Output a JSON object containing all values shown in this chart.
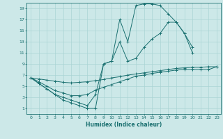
{
  "xlabel": "Humidex (Indice chaleur)",
  "bg_color": "#cce8e8",
  "grid_color": "#aad4d4",
  "line_color": "#1a7070",
  "xlim": [
    -0.5,
    23.5
  ],
  "ylim": [
    0,
    20
  ],
  "xticks": [
    0,
    1,
    2,
    3,
    4,
    5,
    6,
    7,
    8,
    9,
    10,
    11,
    12,
    13,
    14,
    15,
    16,
    17,
    18,
    19,
    20,
    21,
    22,
    23
  ],
  "yticks": [
    1,
    3,
    5,
    7,
    9,
    11,
    13,
    15,
    17,
    19
  ],
  "line1_x": [
    0,
    1,
    2,
    3,
    4,
    5,
    6,
    7,
    8,
    9,
    10,
    11,
    12,
    13,
    14,
    15,
    16,
    17,
    18,
    19,
    20
  ],
  "line1_y": [
    6.5,
    5.5,
    4.5,
    3.5,
    2.5,
    2.0,
    1.5,
    1.0,
    1.0,
    9.0,
    9.5,
    17.0,
    13.0,
    19.5,
    19.8,
    19.8,
    19.5,
    18.0,
    16.5,
    14.5,
    12.0
  ],
  "line2_x": [
    0,
    1,
    2,
    3,
    4,
    5,
    6,
    7,
    8,
    9,
    10,
    11,
    12,
    13,
    14,
    15,
    16,
    17,
    18,
    19,
    20
  ],
  "line2_y": [
    6.5,
    5.5,
    4.5,
    3.5,
    3.0,
    2.5,
    2.0,
    1.5,
    3.5,
    9.0,
    9.5,
    13.0,
    9.5,
    10.0,
    12.0,
    13.5,
    14.5,
    16.5,
    16.5,
    14.5,
    11.0
  ],
  "line3_x": [
    0,
    1,
    2,
    3,
    4,
    5,
    6,
    7,
    8,
    9,
    10,
    11,
    12,
    13,
    14,
    15,
    16,
    17,
    18,
    19,
    20,
    21,
    22,
    23
  ],
  "line3_y": [
    6.5,
    6.3,
    6.1,
    5.9,
    5.7,
    5.6,
    5.7,
    5.8,
    6.0,
    6.2,
    6.5,
    6.7,
    7.0,
    7.2,
    7.4,
    7.6,
    7.8,
    8.0,
    8.2,
    8.3,
    8.4,
    8.4,
    8.5,
    8.5
  ],
  "line4_x": [
    0,
    1,
    2,
    3,
    4,
    5,
    6,
    7,
    8,
    9,
    10,
    11,
    12,
    13,
    14,
    15,
    16,
    17,
    18,
    19,
    20,
    21,
    22,
    23
  ],
  "line4_y": [
    6.5,
    5.8,
    5.0,
    4.2,
    3.8,
    3.3,
    3.3,
    3.5,
    4.3,
    4.8,
    5.3,
    5.8,
    6.3,
    6.8,
    7.0,
    7.3,
    7.5,
    7.7,
    7.9,
    8.0,
    8.0,
    8.0,
    8.0,
    8.5
  ]
}
